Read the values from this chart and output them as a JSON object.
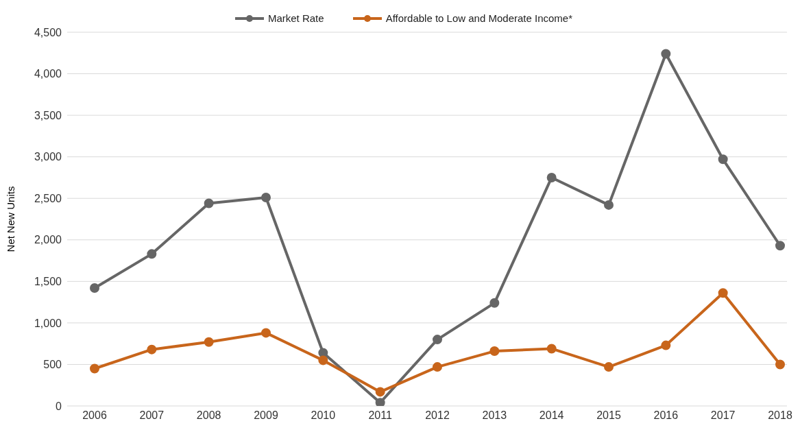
{
  "chart_data": {
    "type": "line",
    "ylabel": "Net New Units",
    "categories": [
      "2006",
      "2007",
      "2008",
      "2009",
      "2010",
      "2011",
      "2012",
      "2013",
      "2014",
      "2015",
      "2016",
      "2017",
      "2018"
    ],
    "series": [
      {
        "name": "Market Rate",
        "color": "#666666",
        "values": [
          1420,
          1830,
          2440,
          2510,
          640,
          40,
          800,
          1240,
          2750,
          2420,
          4240,
          2970,
          1930
        ]
      },
      {
        "name": "Affordable to Low and Moderate Income*",
        "color": "#c8651b",
        "values": [
          450,
          680,
          770,
          880,
          550,
          170,
          470,
          660,
          690,
          470,
          730,
          1360,
          500
        ]
      }
    ],
    "ylim": [
      0,
      4500
    ],
    "yticks": [
      0,
      500,
      {
        "value": 1000,
        "label": "1,000"
      },
      {
        "value": 1500,
        "label": "1,500"
      },
      {
        "value": 2000,
        "label": "2,000"
      },
      {
        "value": 2500,
        "label": "2,500"
      },
      {
        "value": 3000,
        "label": "3,000"
      },
      {
        "value": 3500,
        "label": "3,500"
      },
      {
        "value": 4000,
        "label": "4,000"
      },
      {
        "value": 4500,
        "label": "4,500"
      }
    ],
    "grid": "y",
    "legend": "top",
    "marker": "circle",
    "line_style": "solid"
  }
}
